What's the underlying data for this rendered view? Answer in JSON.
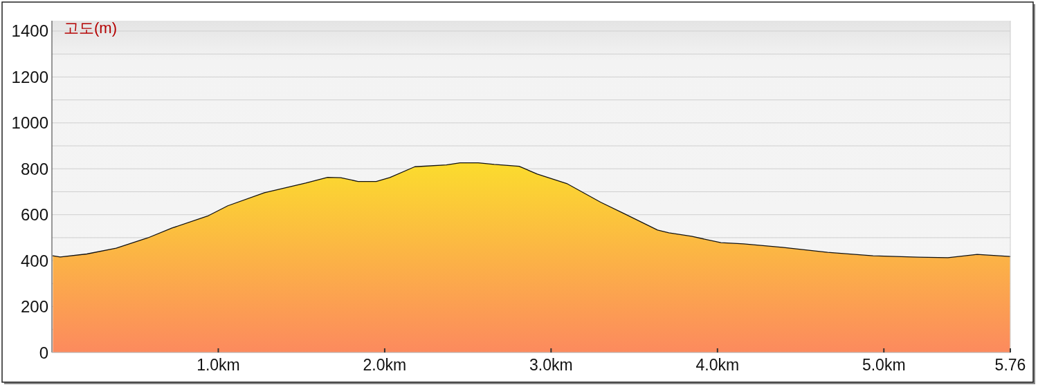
{
  "chart_data": {
    "type": "area",
    "ylabel": "고도(m)",
    "x": [
      0.006,
      0.05,
      0.21,
      0.386,
      0.576,
      0.722,
      0.941,
      1.057,
      1.277,
      1.525,
      1.657,
      1.736,
      1.84,
      1.949,
      2.031,
      2.181,
      2.371,
      2.453,
      2.562,
      2.658,
      2.808,
      2.917,
      3.094,
      3.299,
      3.435,
      3.64,
      3.708,
      3.844,
      4.021,
      4.157,
      4.389,
      4.662,
      4.935,
      5.207,
      5.385,
      5.561,
      5.759
    ],
    "series": [
      {
        "color": "#fbe727",
        "values": [
          421,
          416,
          429,
          454,
          499,
          542,
          596,
          639,
          696,
          738,
          763,
          761,
          745,
          745,
          762,
          809,
          817,
          826,
          826,
          819,
          811,
          777,
          736,
          654,
          606,
          533,
          521,
          506,
          478,
          473,
          458,
          436,
          421,
          415,
          413,
          427,
          418
        ]
      }
    ],
    "xlim": [
      0,
      5.76
    ],
    "xticks": [
      {
        "value": 1,
        "label": "1.0km"
      },
      {
        "value": 2,
        "label": "2.0km"
      },
      {
        "value": 3,
        "label": "3.0km"
      },
      {
        "value": 4,
        "label": "4.0km"
      },
      {
        "value": 5,
        "label": "5.0km"
      },
      {
        "value": 5.76,
        "label": "5.76"
      }
    ],
    "ylim": [
      0,
      1445
    ],
    "yticks": [
      0,
      {
        "value": 100,
        "label": null
      },
      200,
      {
        "value": 300,
        "label": null
      },
      400,
      {
        "value": 500,
        "label": null
      },
      600,
      {
        "value": 700,
        "label": null
      },
      800,
      {
        "value": 900,
        "label": null
      },
      1000,
      {
        "value": 1100,
        "label": null
      },
      1200,
      {
        "value": 1300,
        "label": null
      },
      1400
    ],
    "grid": "y"
  }
}
